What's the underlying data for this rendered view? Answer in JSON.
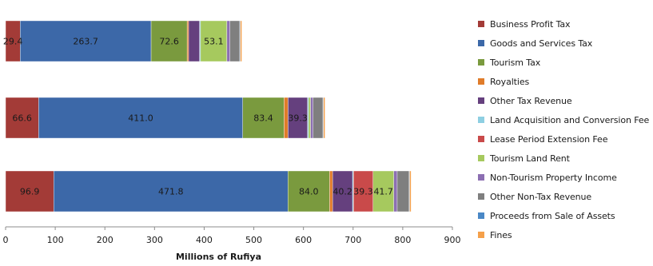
{
  "chart_data": {
    "type": "bar",
    "orientation": "horizontal",
    "stacked": true,
    "xlabel": "Millions of Rufiya",
    "xlim": [
      0,
      900
    ],
    "xticks": [
      "0",
      "100",
      "200",
      "300",
      "400",
      "500",
      "600",
      "700",
      "800",
      "900"
    ],
    "grid": false,
    "legend_position": "right",
    "categories": [
      "",
      "",
      ""
    ],
    "series": [
      {
        "name": "Business Profit Tax",
        "color": "#a33b37",
        "values": [
          29.4,
          66.6,
          96.9
        ],
        "labels": [
          "29.4",
          "66.6",
          "96.9"
        ]
      },
      {
        "name": "Goods and Services Tax",
        "color": "#3c68a8",
        "values": [
          263.7,
          411.0,
          471.8
        ],
        "labels": [
          "263.7",
          "411.0",
          "471.8"
        ]
      },
      {
        "name": "Tourism Tax",
        "color": "#7a9a3e",
        "values": [
          72.6,
          83.4,
          84.0
        ],
        "labels": [
          "72.6",
          "83.4",
          "84.0"
        ]
      },
      {
        "name": "Royalties",
        "color": "#e07c2a",
        "values": [
          3,
          8,
          6
        ],
        "labels": [
          "",
          "",
          ""
        ]
      },
      {
        "name": "Other Tax Revenue",
        "color": "#65407e",
        "values": [
          22,
          39.3,
          40.2
        ],
        "labels": [
          "",
          "39.3",
          "40.2"
        ]
      },
      {
        "name": "Land Acquisition and Conversion Fee",
        "color": "#8ecfe2",
        "values": [
          2,
          2,
          2
        ],
        "labels": [
          "",
          "",
          ""
        ]
      },
      {
        "name": "Lease Period Extension Fee",
        "color": "#c94a4a",
        "values": [
          0,
          0,
          39.3
        ],
        "labels": [
          "",
          "",
          "39.3"
        ]
      },
      {
        "name": "Tourism Land Rent",
        "color": "#a6c95e",
        "values": [
          53.1,
          4,
          41.7
        ],
        "labels": [
          "53.1",
          "",
          "41.7"
        ]
      },
      {
        "name": "Non-Tourism Property Income",
        "color": "#8c6fb2",
        "values": [
          6,
          5,
          7
        ],
        "labels": [
          "",
          "",
          ""
        ]
      },
      {
        "name": "Other Non-Tax Revenue",
        "color": "#7f7f7f",
        "values": [
          20,
          20,
          24
        ],
        "labels": [
          "",
          "",
          ""
        ]
      },
      {
        "name": "Proceeds from Sale of Assets",
        "color": "#4a88c6",
        "values": [
          1,
          1,
          1
        ],
        "labels": [
          "",
          "",
          ""
        ]
      },
      {
        "name": "Fines",
        "color": "#f5a04a",
        "values": [
          3,
          3,
          3
        ],
        "labels": [
          "",
          "",
          ""
        ]
      }
    ]
  }
}
